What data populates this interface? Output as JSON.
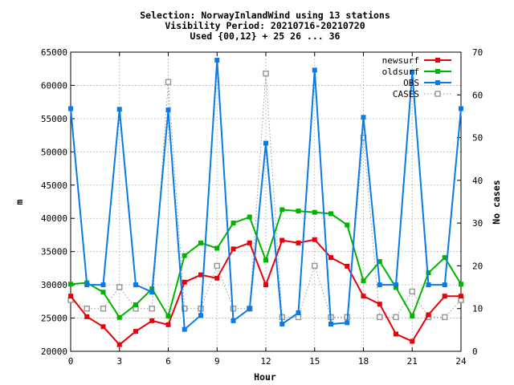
{
  "chart_data": {
    "type": "line",
    "title_lines": [
      "Selection: NorwayInlandWind using    13 stations",
      "Visibility   Period: 20210716-20210720",
      "Used {00,12} + 25 26 ... 36"
    ],
    "xlabel": "Hour",
    "ylabel": "m",
    "y2label": "No cases",
    "xlim": [
      0,
      24
    ],
    "ylim": [
      20000,
      65000
    ],
    "y2lim": [
      0,
      70
    ],
    "xticks": [
      0,
      3,
      6,
      9,
      12,
      15,
      18,
      21,
      24
    ],
    "yticks": [
      20000,
      25000,
      30000,
      35000,
      40000,
      45000,
      50000,
      55000,
      60000,
      65000
    ],
    "y2ticks": [
      0,
      10,
      20,
      30,
      40,
      50,
      60,
      70
    ],
    "grid": true,
    "legend_position": "top-right",
    "x": [
      0,
      1,
      2,
      3,
      4,
      5,
      6,
      7,
      8,
      9,
      10,
      11,
      12,
      13,
      14,
      15,
      16,
      17,
      18,
      19,
      20,
      21,
      22,
      23,
      24
    ],
    "series": [
      {
        "name": "newsurf",
        "color": "#e8000b",
        "marker": "square",
        "axis": "y",
        "values": [
          28300,
          25200,
          23700,
          21000,
          23000,
          24600,
          24000,
          30400,
          31500,
          31000,
          35400,
          36300,
          30000,
          36700,
          36300,
          36800,
          34100,
          32800,
          28300,
          27100,
          22600,
          21500,
          25500,
          28300,
          28300
        ]
      },
      {
        "name": "oldsurf",
        "color": "#00b400",
        "marker": "square",
        "axis": "y",
        "values": [
          30100,
          30300,
          28900,
          25100,
          27000,
          29400,
          25300,
          34400,
          36300,
          35500,
          39300,
          40200,
          33700,
          41300,
          41100,
          40900,
          40700,
          39000,
          30600,
          33500,
          29600,
          25300,
          31800,
          34100,
          30100
        ]
      },
      {
        "name": "OBS",
        "color": "#0a7ae6",
        "marker": "square",
        "axis": "y",
        "values": [
          56500,
          30000,
          30000,
          56400,
          30000,
          28900,
          56300,
          23300,
          25400,
          63800,
          24600,
          26400,
          51300,
          24100,
          25800,
          62300,
          24100,
          24300,
          55200,
          30000,
          30000,
          62000,
          30000,
          30000,
          56500
        ]
      },
      {
        "name": "CASES",
        "color": "#999999",
        "marker": "open-square",
        "axis": "y2",
        "values": [
          12,
          10,
          10,
          15,
          10,
          10,
          63,
          10,
          10,
          20,
          10,
          10,
          65,
          8,
          8,
          20,
          8,
          8,
          50,
          8,
          8,
          14,
          8,
          8,
          12
        ]
      }
    ]
  }
}
